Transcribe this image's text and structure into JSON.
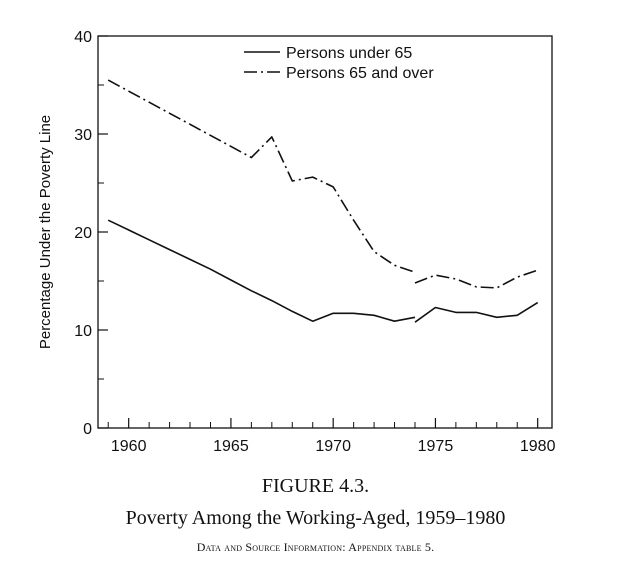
{
  "chart_data": {
    "type": "line",
    "ylabel": "Percentage Under the Poverty Line",
    "xlabel": "",
    "xlim": [
      1958.5,
      1980.7
    ],
    "ylim": [
      0,
      40
    ],
    "xticks_major": [
      1960,
      1965,
      1970,
      1975,
      1980
    ],
    "xticks_minor": [
      1959,
      1961,
      1962,
      1963,
      1964,
      1966,
      1967,
      1968,
      1969,
      1971,
      1972,
      1973,
      1974,
      1976,
      1977,
      1978,
      1979
    ],
    "yticks_major": [
      0,
      10,
      20,
      30,
      40
    ],
    "yticks_minor": [
      5,
      15,
      25,
      35
    ],
    "legend_position": "top-right",
    "series": [
      {
        "name": "Persons under 65",
        "style": "solid",
        "segments": [
          {
            "x": [
              1959,
              1960,
              1961,
              1962,
              1963,
              1964,
              1965,
              1966,
              1967,
              1968,
              1969,
              1970,
              1971,
              1972,
              1973,
              1974
            ],
            "y": [
              21.2,
              20.2,
              19.2,
              18.2,
              17.2,
              16.2,
              15.1,
              14.0,
              13.0,
              11.9,
              10.9,
              11.7,
              11.7,
              11.5,
              10.9,
              11.3
            ]
          },
          {
            "x": [
              1974,
              1975,
              1976,
              1977,
              1978,
              1979,
              1980
            ],
            "y": [
              10.8,
              12.3,
              11.8,
              11.8,
              11.3,
              11.5,
              12.8
            ]
          }
        ]
      },
      {
        "name": "Persons 65 and over",
        "style": "dashdot",
        "segments": [
          {
            "x": [
              1959,
              1966,
              1967,
              1968,
              1969,
              1970,
              1971,
              1972,
              1973,
              1974
            ],
            "y": [
              35.5,
              27.6,
              29.7,
              25.2,
              25.6,
              24.6,
              21.2,
              18.0,
              16.6,
              15.9
            ]
          },
          {
            "x": [
              1974,
              1975,
              1976,
              1977,
              1978,
              1979,
              1980
            ],
            "y": [
              14.8,
              15.6,
              15.2,
              14.4,
              14.3,
              15.4,
              16.1
            ]
          }
        ]
      }
    ]
  },
  "caption": {
    "figure_number": "FIGURE 4.3.",
    "title": "Poverty Among the Working-Aged, 1959–1980",
    "source": "Data and Source Information: Appendix table 5."
  },
  "colors": {
    "ink": "#111111",
    "background": "#ffffff"
  }
}
